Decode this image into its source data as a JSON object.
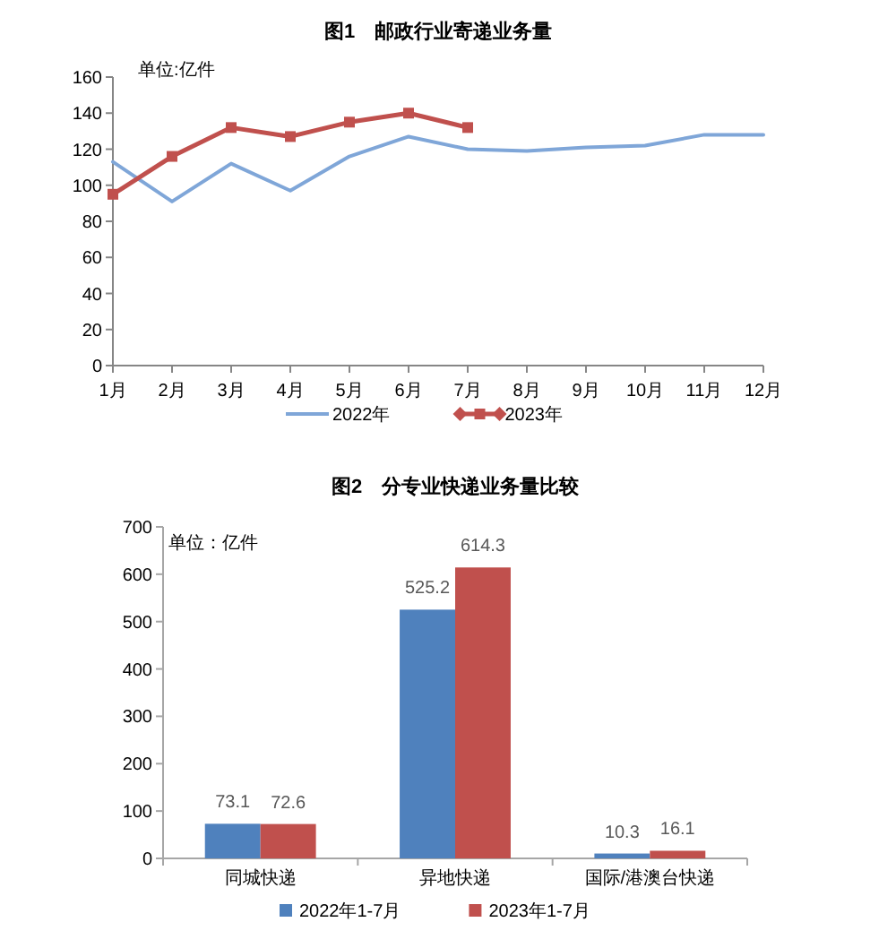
{
  "chart_data": [
    {
      "type": "line",
      "title": "图1　邮政行业寄递业务量",
      "categories": [
        "1月",
        "2月",
        "3月",
        "4月",
        "5月",
        "6月",
        "7月",
        "8月",
        "9月",
        "10月",
        "11月",
        "12月"
      ],
      "series": [
        {
          "name": "2022年",
          "color": "#7fa6d8",
          "values": [
            113,
            91,
            112,
            97,
            116,
            127,
            120,
            119,
            121,
            122,
            128,
            128
          ]
        },
        {
          "name": "2023年",
          "color": "#c0504d",
          "marker": "square",
          "values": [
            95,
            116,
            132,
            127,
            135,
            140,
            132,
            null,
            null,
            null,
            null,
            null
          ]
        }
      ],
      "ylim": [
        0,
        160
      ],
      "yticks": [
        0,
        20,
        40,
        60,
        80,
        100,
        120,
        140,
        160
      ],
      "legend": "bottom",
      "annotations": [
        "单位:亿件"
      ]
    },
    {
      "type": "bar",
      "title": "图2　分专业快递业务量比较",
      "categories": [
        "同城快递",
        "异地快递",
        "国际/港澳台快递"
      ],
      "series": [
        {
          "name": "2022年1-7月",
          "color": "#4f81bd",
          "values": [
            73.1,
            525.2,
            10.3
          ]
        },
        {
          "name": "2023年1-7月",
          "color": "#c0504d",
          "values": [
            72.6,
            614.3,
            16.1
          ]
        }
      ],
      "ylim": [
        0,
        700
      ],
      "yticks": [
        0,
        100,
        200,
        300,
        400,
        500,
        600,
        700
      ],
      "legend": "bottom",
      "data_labels": true,
      "annotations": [
        "单位：亿件"
      ]
    }
  ]
}
